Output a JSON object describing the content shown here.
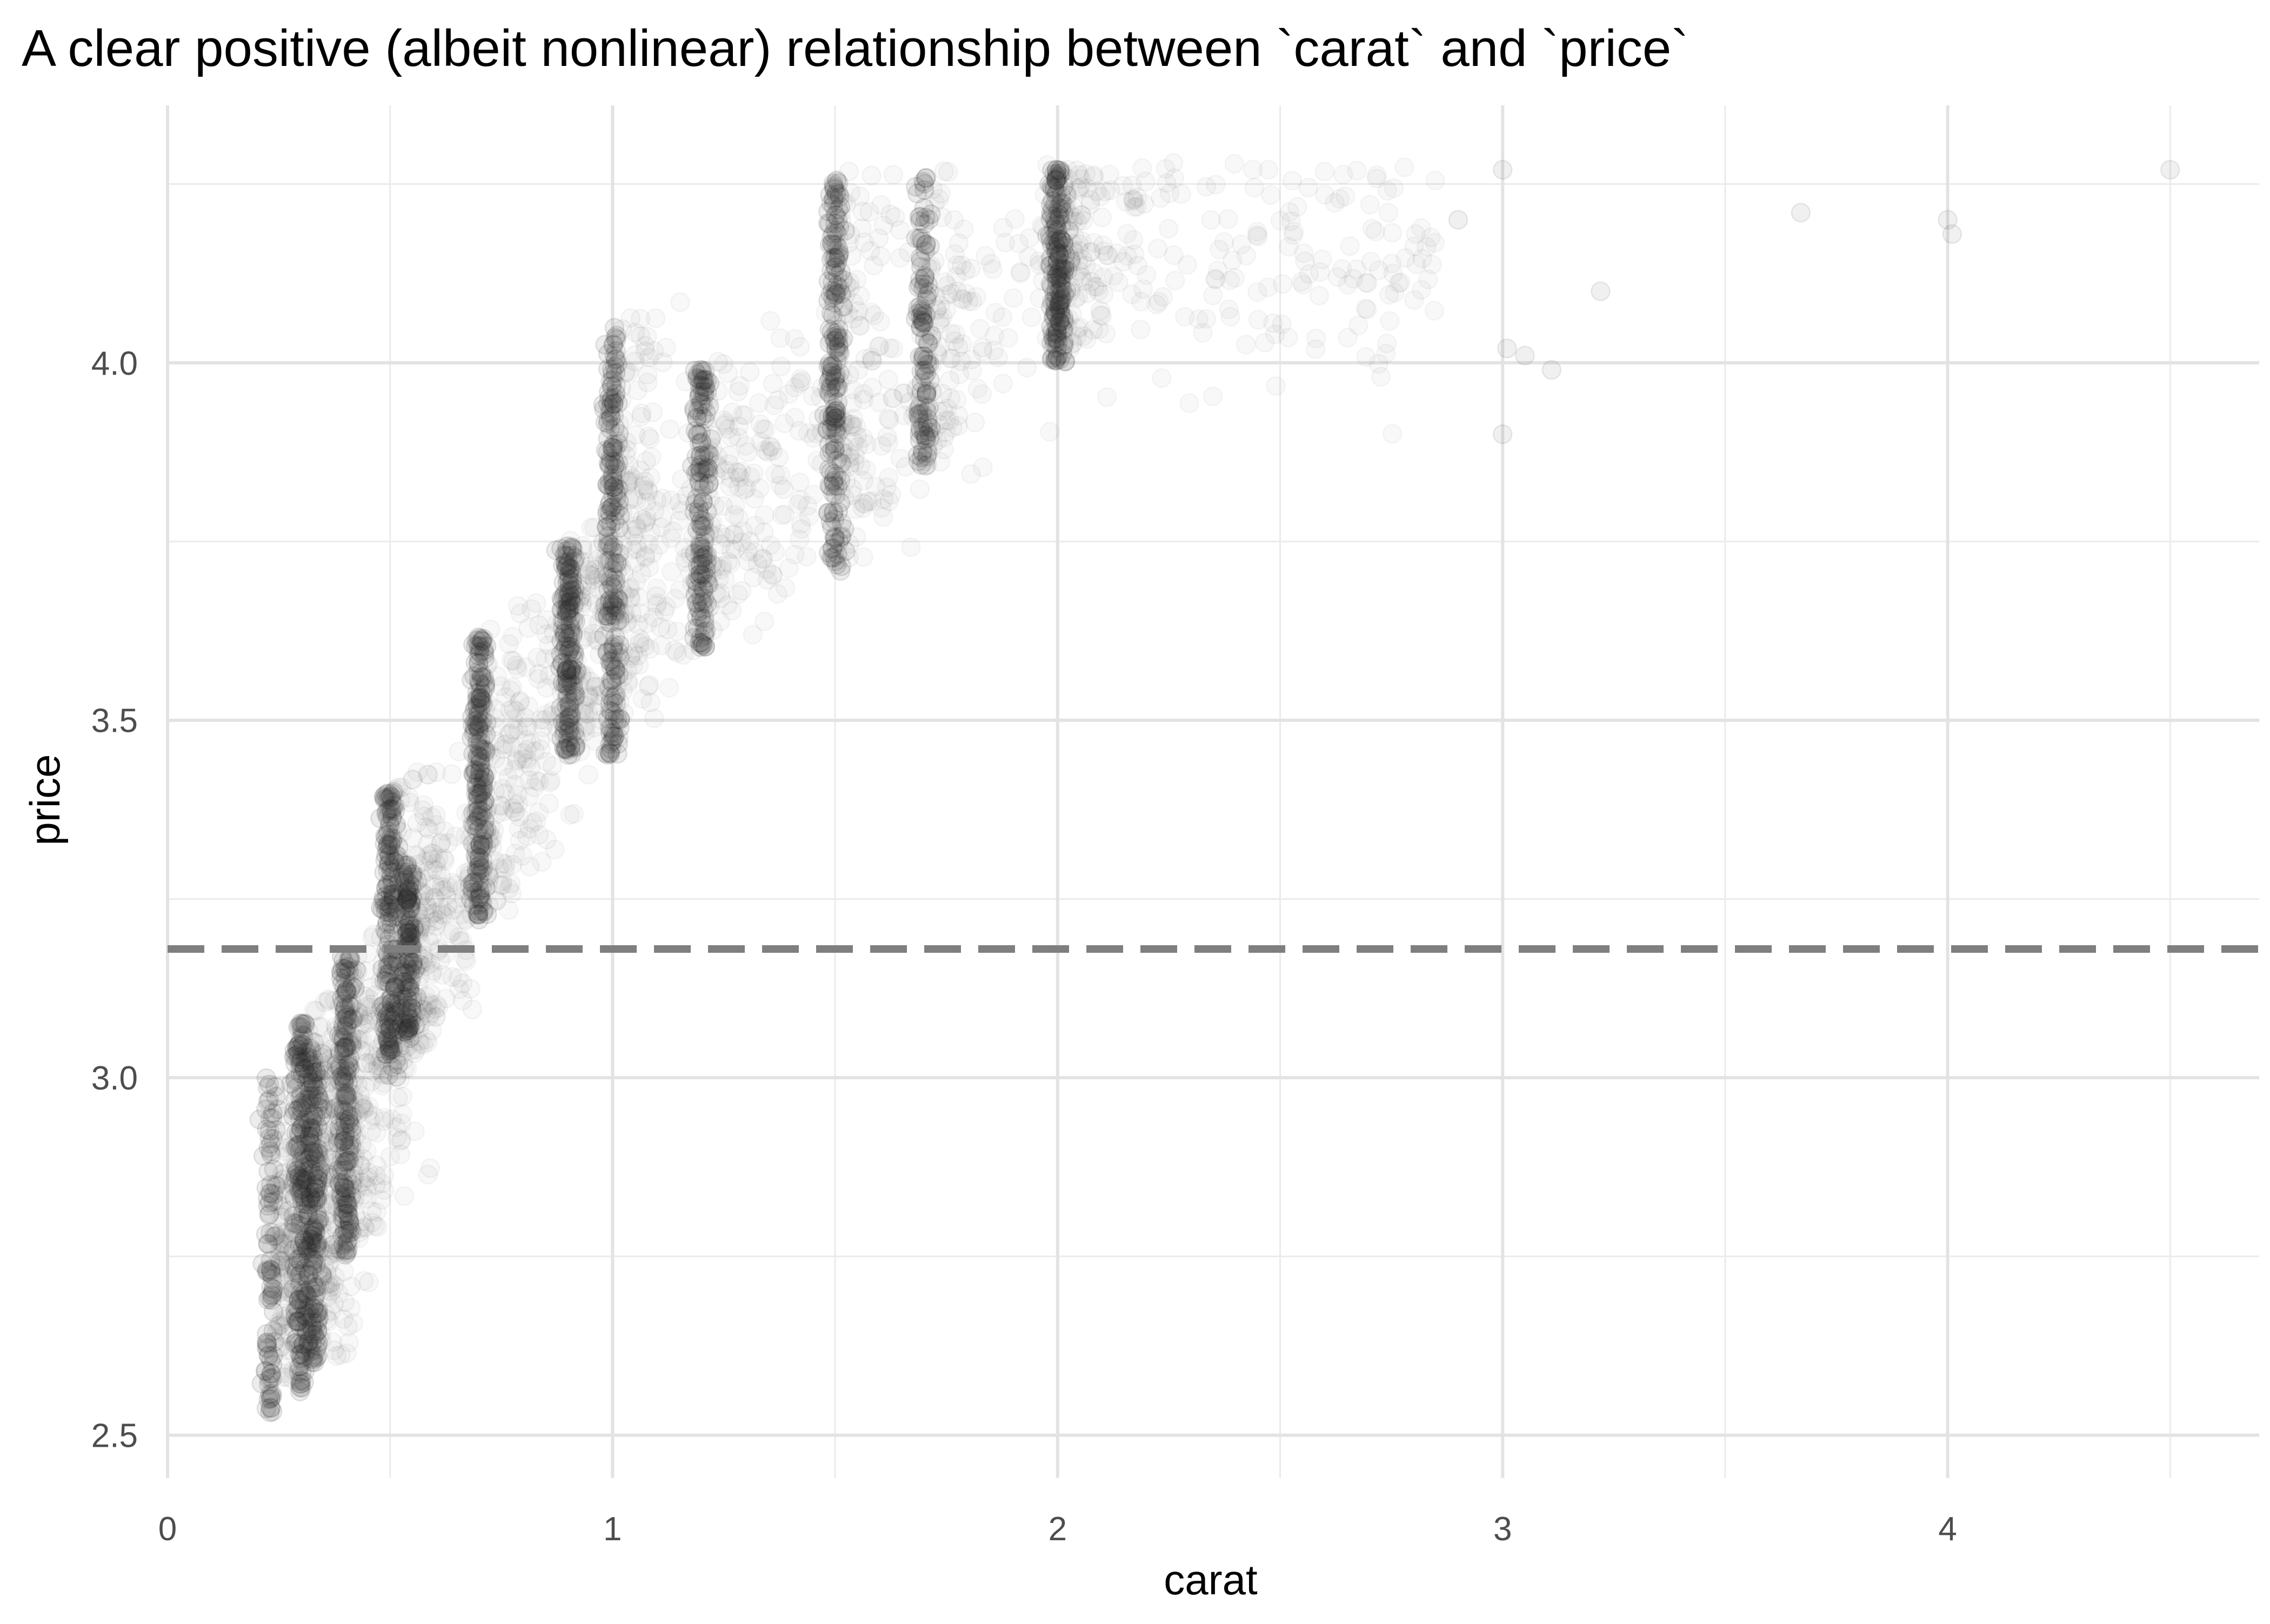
{
  "chart_data": {
    "type": "scatter",
    "title": "A clear positive (albeit nonlinear) relationship between `carat` and `price`",
    "xlabel": "carat",
    "ylabel": "price",
    "xlim": [
      0,
      4.7
    ],
    "ylim": [
      2.44,
      4.36
    ],
    "x_ticks": [
      0,
      1,
      2,
      3,
      4
    ],
    "x_tick_labels": [
      "0",
      "1",
      "2",
      "3",
      "4"
    ],
    "y_ticks": [
      2.5,
      3.0,
      3.5,
      4.0
    ],
    "y_tick_labels": [
      "2.5",
      "3.0",
      "3.5",
      "4.0"
    ],
    "grid": true,
    "point_color": "#2b2b2b",
    "reference_line": {
      "orientation": "horizontal",
      "y": 3.18,
      "style": "dashed",
      "color": "#7f7f7f"
    },
    "clusters": [
      {
        "carat": 0.23,
        "price_min": 2.53,
        "price_max": 3.0,
        "density": 0.35
      },
      {
        "carat": 0.3,
        "price_min": 2.56,
        "price_max": 3.08,
        "density": 1.0
      },
      {
        "carat": 0.33,
        "price_min": 2.6,
        "price_max": 3.05,
        "density": 0.8
      },
      {
        "carat": 0.4,
        "price_min": 2.75,
        "price_max": 3.17,
        "density": 0.85
      },
      {
        "carat": 0.5,
        "price_min": 3.0,
        "price_max": 3.4,
        "density": 0.9
      },
      {
        "carat": 0.54,
        "price_min": 3.05,
        "price_max": 3.3,
        "density": 0.6
      },
      {
        "carat": 0.7,
        "price_min": 3.22,
        "price_max": 3.62,
        "density": 0.95
      },
      {
        "carat": 0.9,
        "price_min": 3.45,
        "price_max": 3.75,
        "density": 0.8
      },
      {
        "carat": 1.0,
        "price_min": 3.45,
        "price_max": 4.05,
        "density": 1.0
      },
      {
        "carat": 1.2,
        "price_min": 3.6,
        "price_max": 4.0,
        "density": 0.7
      },
      {
        "carat": 1.5,
        "price_min": 3.7,
        "price_max": 4.26,
        "density": 0.9
      },
      {
        "carat": 1.7,
        "price_min": 3.85,
        "price_max": 4.26,
        "density": 0.45
      },
      {
        "carat": 2.0,
        "price_min": 4.0,
        "price_max": 4.27,
        "density": 0.85
      }
    ]
  }
}
